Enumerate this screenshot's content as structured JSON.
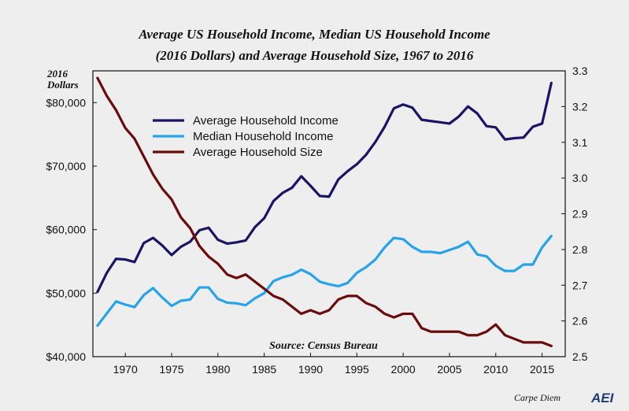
{
  "chart_data": {
    "type": "line",
    "title_line1": "Average US Household Income, Median US Household Income",
    "title_line2": "(2016 Dollars) and Average Household Size, 1967 to 2016",
    "ylabel_left_line1": "2016",
    "ylabel_left_line2": "Dollars",
    "source": "Source: Census Bureau",
    "x": [
      1967,
      1968,
      1969,
      1970,
      1971,
      1972,
      1973,
      1974,
      1975,
      1976,
      1977,
      1978,
      1979,
      1980,
      1981,
      1982,
      1983,
      1984,
      1985,
      1986,
      1987,
      1988,
      1989,
      1990,
      1991,
      1992,
      1993,
      1994,
      1995,
      1996,
      1997,
      1998,
      1999,
      2000,
      2001,
      2002,
      2003,
      2004,
      2005,
      2006,
      2007,
      2008,
      2009,
      2010,
      2011,
      2012,
      2013,
      2014,
      2015,
      2016
    ],
    "xlim": [
      1966.5,
      2017.5
    ],
    "xticks": [
      1970,
      1975,
      1980,
      1985,
      1990,
      1995,
      2000,
      2005,
      2010,
      2015
    ],
    "xtick_labels": [
      "1970",
      "1975",
      "1980",
      "1985",
      "1990",
      "1995",
      "2000",
      "2005",
      "2010",
      "2015"
    ],
    "ylim_left": [
      40000,
      85000
    ],
    "yticks_left": [
      40000,
      50000,
      60000,
      70000,
      80000
    ],
    "ytick_labels_left": [
      "$40,000",
      "$50,000",
      "$60,000",
      "$70,000",
      "$80,000"
    ],
    "ylim_right": [
      2.5,
      3.3
    ],
    "yticks_right": [
      2.5,
      2.6,
      2.7,
      2.8,
      2.9,
      3.0,
      3.1,
      3.2,
      3.3
    ],
    "ytick_labels_right": [
      "2.5",
      "2.6",
      "2.7",
      "2.8",
      "2.9",
      "3.0",
      "3.1",
      "3.2",
      "3.3"
    ],
    "series": [
      {
        "name": "Average Household Income",
        "axis": "left",
        "color": "#1b1464",
        "values": [
          50200,
          53200,
          55400,
          55300,
          54900,
          57900,
          58700,
          57500,
          56000,
          57300,
          58100,
          59900,
          60300,
          58400,
          57800,
          58000,
          58300,
          60400,
          61800,
          64500,
          65800,
          66600,
          68400,
          66900,
          65300,
          65200,
          67900,
          69200,
          70300,
          71800,
          73800,
          76200,
          79100,
          79700,
          79200,
          77300,
          77100,
          76900,
          76700,
          77800,
          79400,
          78300,
          76300,
          76100,
          74200,
          74400,
          74500,
          76200,
          76700,
          83100
        ]
      },
      {
        "name": "Median Household Income",
        "axis": "left",
        "color": "#27a3ea",
        "values": [
          44900,
          46800,
          48700,
          48200,
          47800,
          49700,
          50800,
          49300,
          48000,
          48800,
          49000,
          50900,
          50900,
          49100,
          48500,
          48400,
          48100,
          49200,
          50000,
          51900,
          52500,
          52900,
          53700,
          53000,
          51800,
          51400,
          51100,
          51600,
          53200,
          54100,
          55300,
          57200,
          58700,
          58500,
          57300,
          56500,
          56500,
          56300,
          56800,
          57300,
          58100,
          56100,
          55800,
          54300,
          53500,
          53500,
          54500,
          54500,
          57200,
          59000
        ]
      },
      {
        "name": "Average Household Size",
        "axis": "right",
        "color": "#6b0c0c",
        "values": [
          3.28,
          3.23,
          3.19,
          3.14,
          3.11,
          3.06,
          3.01,
          2.97,
          2.94,
          2.89,
          2.86,
          2.81,
          2.78,
          2.76,
          2.73,
          2.72,
          2.73,
          2.71,
          2.69,
          2.67,
          2.66,
          2.64,
          2.62,
          2.63,
          2.62,
          2.63,
          2.66,
          2.67,
          2.67,
          2.65,
          2.64,
          2.62,
          2.61,
          2.62,
          2.62,
          2.58,
          2.57,
          2.57,
          2.57,
          2.57,
          2.56,
          2.56,
          2.57,
          2.59,
          2.56,
          2.55,
          2.54,
          2.54,
          2.54,
          2.53
        ]
      }
    ]
  },
  "footer": {
    "brand_text": "Carpe Diem",
    "logo_text": "AEI"
  }
}
